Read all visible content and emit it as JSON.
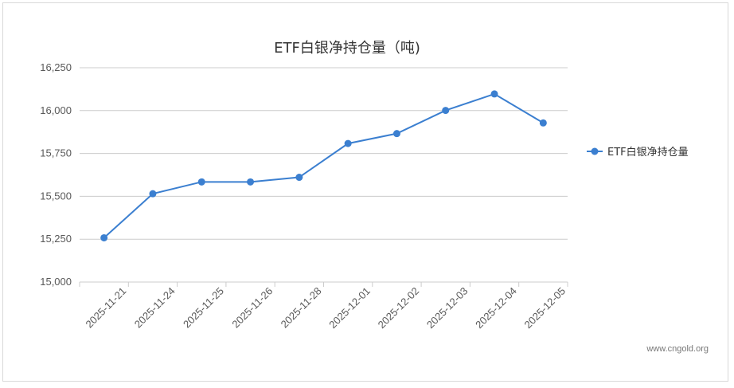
{
  "chart_data": {
    "type": "line",
    "title": "ETF白银净持仓量（吨)",
    "categories": [
      "2025-11-21",
      "2025-11-24",
      "2025-11-25",
      "2025-11-26",
      "2025-11-28",
      "2025-12-01",
      "2025-12-02",
      "2025-12-03",
      "2025-12-04",
      "2025-12-05"
    ],
    "series": [
      {
        "name": "ETF白银净持仓量",
        "values": [
          15258,
          15515,
          15584,
          15584,
          15611,
          15808,
          15866,
          16001,
          16097,
          15928
        ]
      }
    ],
    "ylim": [
      15000,
      16250
    ],
    "yticks": [
      15000,
      15250,
      15500,
      15750,
      16000,
      16250
    ],
    "ytick_labels": [
      "15,000",
      "15,250",
      "15,500",
      "15,750",
      "16,000",
      "16,250"
    ],
    "grid": true,
    "legend_position": "right",
    "line_color": "#3b7fd0"
  },
  "watermark": "www.cngold.org"
}
